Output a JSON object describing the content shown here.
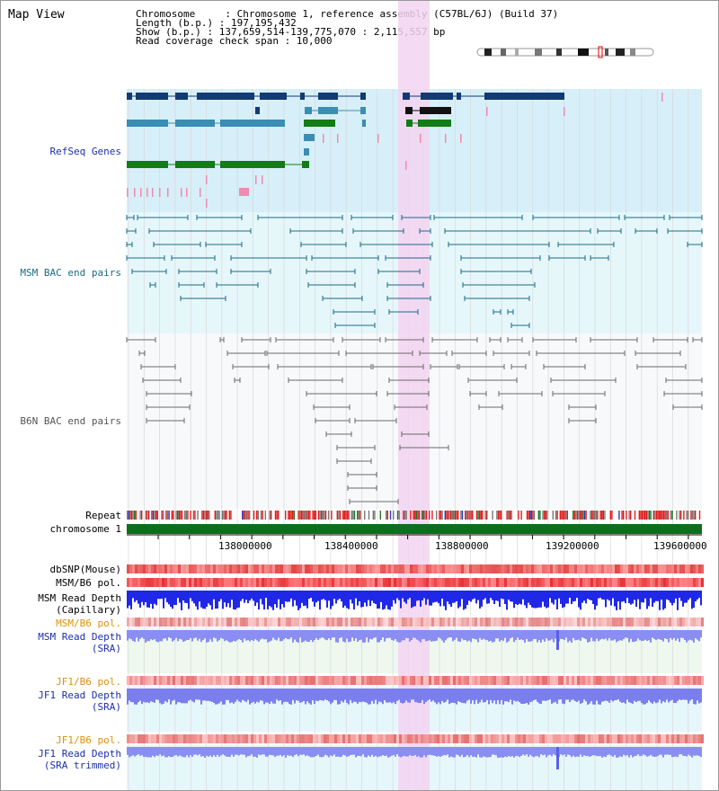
{
  "view": {
    "title": "Map View"
  },
  "header": {
    "line1": "Chromosome     : Chromosome 1, reference assembly (C57BL/6J) (Build 37)",
    "line2": "Length (b.p.) : 197,195,432",
    "line3": "Show (b.p.) : 137,659,514-139,775,070 : 2,115,557 bp",
    "line4": "Read coverage check span : 10,000"
  },
  "tracks": {
    "refseq": "RefSeq Genes",
    "msm_bac": "MSM BAC end pairs",
    "b6n_bac": "B6N BAC end pairs",
    "repeat": "Repeat",
    "chromosome": "chromosome 1",
    "dbsnp": "dbSNP(Mouse)",
    "msm_b6_pol_1": "MSM/B6 pol.",
    "msm_depth_cap": "MSM Read Depth\n(Capillary)",
    "msm_b6_pol_2": "MSM/B6 pol.",
    "msm_depth_sra": "MSM Read Depth\n(SRA)",
    "jf1_b6_pol_1": "JF1/B6 pol.",
    "jf1_depth_sra": "JF1 Read Depth\n(SRA)",
    "jf1_b6_pol_2": "JF1/B6 pol.",
    "jf1_depth_trim": "JF1 Read Depth\n(SRA trimmed)"
  },
  "axis": {
    "ticks": [
      "138000000",
      "138400000",
      "138800000",
      "139200000",
      "139600000"
    ]
  },
  "colors": {
    "refseq_bg": "#d7eff9",
    "msm_bg": "#e6f7fb",
    "b6n_bg": "#f7f9fb",
    "highlight": "#f3d3f1",
    "refseq_dark": "#123a73",
    "refseq_mid": "#3a8db3",
    "refseq_green": "#137b17",
    "msm_line": "#1b6b86",
    "b6n_line": "#6a6a6a",
    "label_blue": "#1c2fb0",
    "label_teal": "#1b6b86",
    "label_orange": "#e0900a",
    "chrom_green": "#0f6e1d"
  }
}
